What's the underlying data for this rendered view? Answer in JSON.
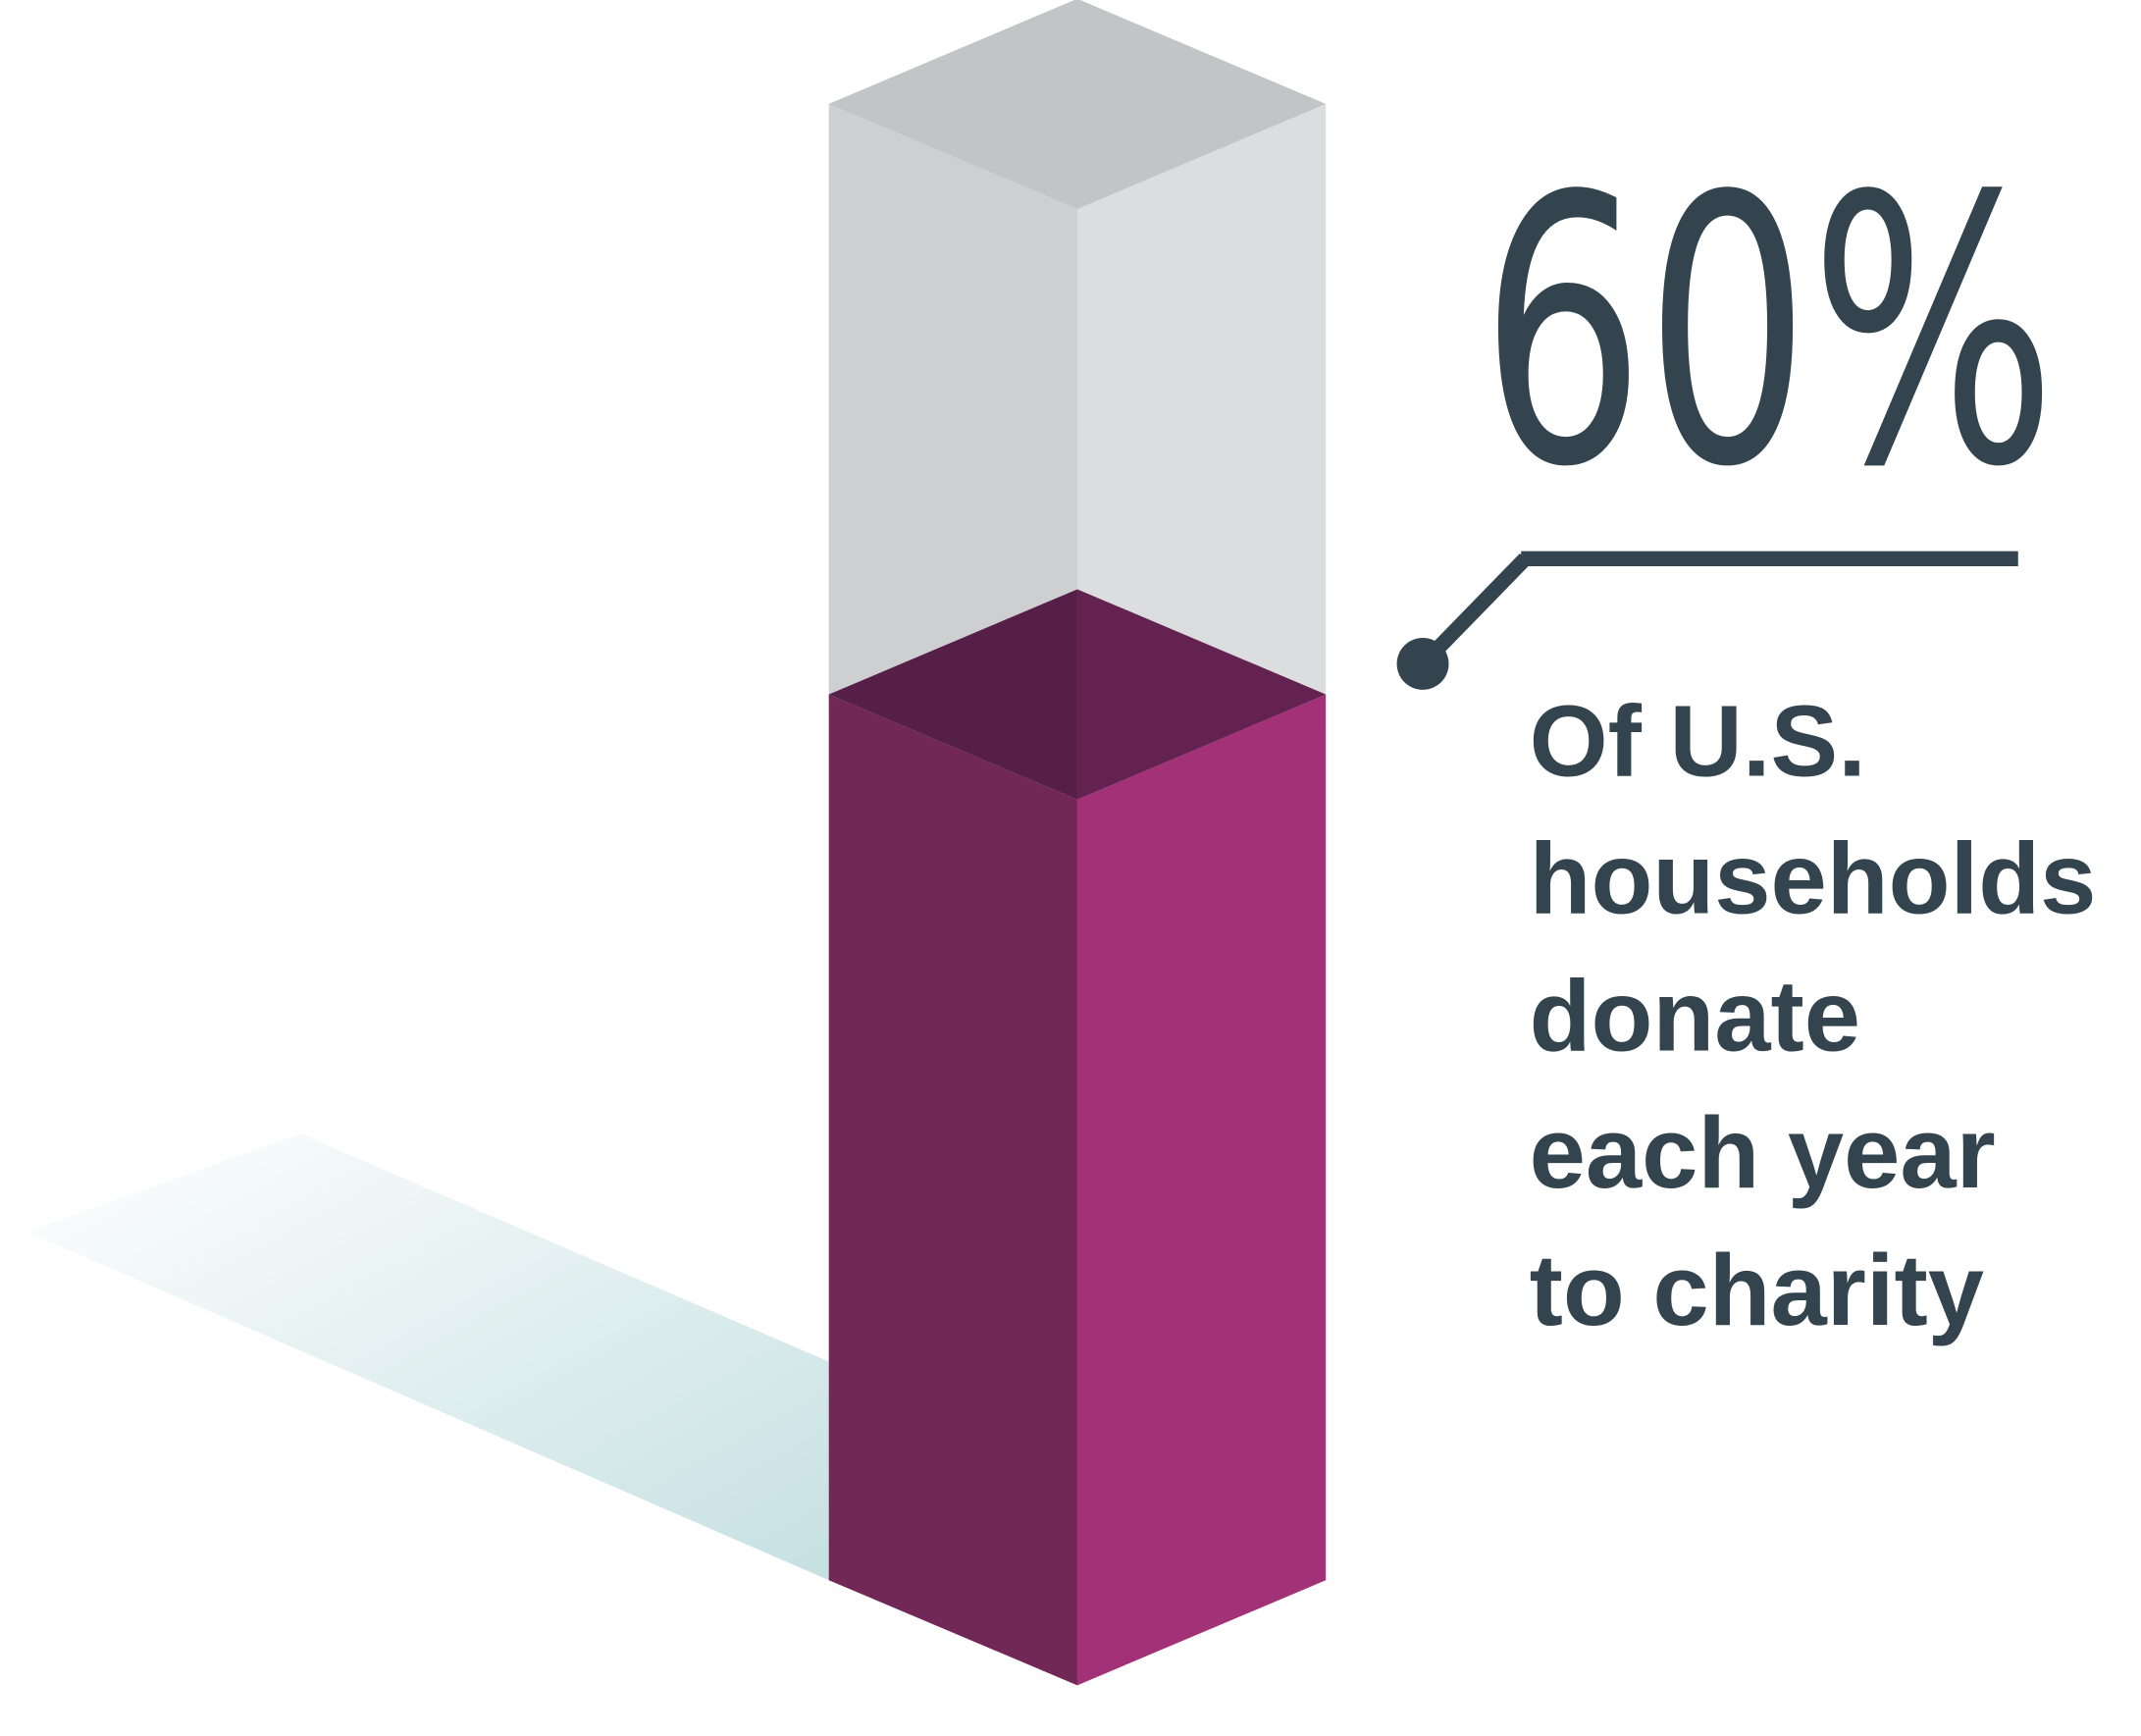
{
  "chart_data": {
    "type": "bar3d",
    "values": [
      60
    ],
    "value_labels": [
      "60%"
    ],
    "ylim": [
      0,
      100
    ],
    "color": "#a33178",
    "annotation": [
      "Of U.S.",
      "households",
      "donate",
      "each year",
      "to charity"
    ]
  }
}
